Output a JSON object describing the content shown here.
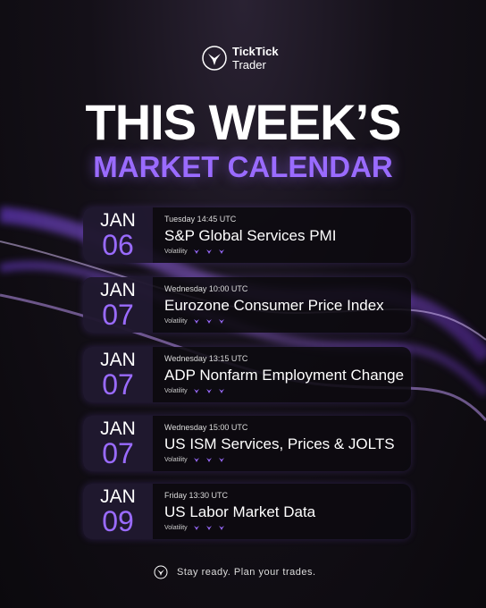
{
  "brand": {
    "line1": "TickTick",
    "line2": "Trader"
  },
  "title": {
    "line1": "THIS WEEK’S",
    "line2": "MARKET CALENDAR"
  },
  "events": [
    {
      "month": "JAN",
      "day": "06",
      "time": "Tuesday 14:45 UTC",
      "name": "S&P Global Services PMI",
      "volatility": "Volatility"
    },
    {
      "month": "JAN",
      "day": "07",
      "time": "Wednesday 10:00 UTC",
      "name": "Eurozone Consumer Price Index",
      "volatility": "Volatility"
    },
    {
      "month": "JAN",
      "day": "07",
      "time": "Wednesday 13:15 UTC",
      "name": "ADP Nonfarm Employment Change",
      "volatility": "Volatility"
    },
    {
      "month": "JAN",
      "day": "07",
      "time": "Wednesday 15:00 UTC",
      "name": "US ISM Services, Prices & JOLTS",
      "volatility": "Volatility"
    },
    {
      "month": "JAN",
      "day": "09",
      "time": "Friday 13:30 UTC",
      "name": "US Labor Market Data",
      "volatility": "Volatility"
    }
  ],
  "footer": "Stay ready. Plan your trades."
}
